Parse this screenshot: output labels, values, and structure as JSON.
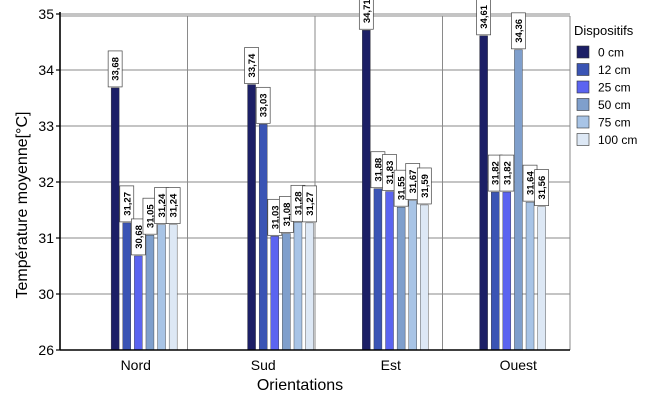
{
  "chart_data": {
    "type": "bar",
    "categories": [
      "Nord",
      "Sud",
      "Est",
      "Ouest"
    ],
    "series": [
      {
        "name": "0 cm",
        "color": "#1c1f66",
        "values": [
          33.68,
          33.74,
          34.71,
          34.61
        ],
        "labels": [
          "33,68",
          "33,74",
          "34,71",
          "34,61"
        ]
      },
      {
        "name": "12 cm",
        "color": "#3a54b4",
        "values": [
          31.27,
          33.03,
          31.88,
          31.82
        ],
        "labels": [
          "31,27",
          "33,03",
          "31,88",
          "31,82"
        ]
      },
      {
        "name": "25 cm",
        "color": "#5b64f0",
        "values": [
          30.68,
          31.03,
          31.83,
          31.82
        ],
        "labels": [
          "30,68",
          "31,03",
          "31,83",
          "31,82"
        ]
      },
      {
        "name": "50 cm",
        "color": "#7f9fcc",
        "values": [
          31.05,
          31.08,
          31.55,
          34.36
        ],
        "labels": [
          "31,05",
          "31,08",
          "31,55",
          "34,36"
        ]
      },
      {
        "name": "75 cm",
        "color": "#a8c4e6",
        "values": [
          31.24,
          31.28,
          31.67,
          31.64
        ],
        "labels": [
          "31,24",
          "31,28",
          "31,67",
          "31,64"
        ]
      },
      {
        "name": "100 cm",
        "color": "#dde8f5",
        "values": [
          31.24,
          31.27,
          31.59,
          31.56
        ],
        "labels": [
          "31,24",
          "31,27",
          "31,59",
          "31,56"
        ]
      }
    ],
    "y_ticks": [
      26,
      30,
      31,
      32,
      33,
      34,
      35
    ],
    "y_scale": "broken axis: 26 at base, then 30 to 35 linear",
    "xlabel": "Orientations",
    "ylabel": "Température moyenne[°C]",
    "legend_title": "Dispositifs",
    "legend_position": "right",
    "grid": true
  }
}
